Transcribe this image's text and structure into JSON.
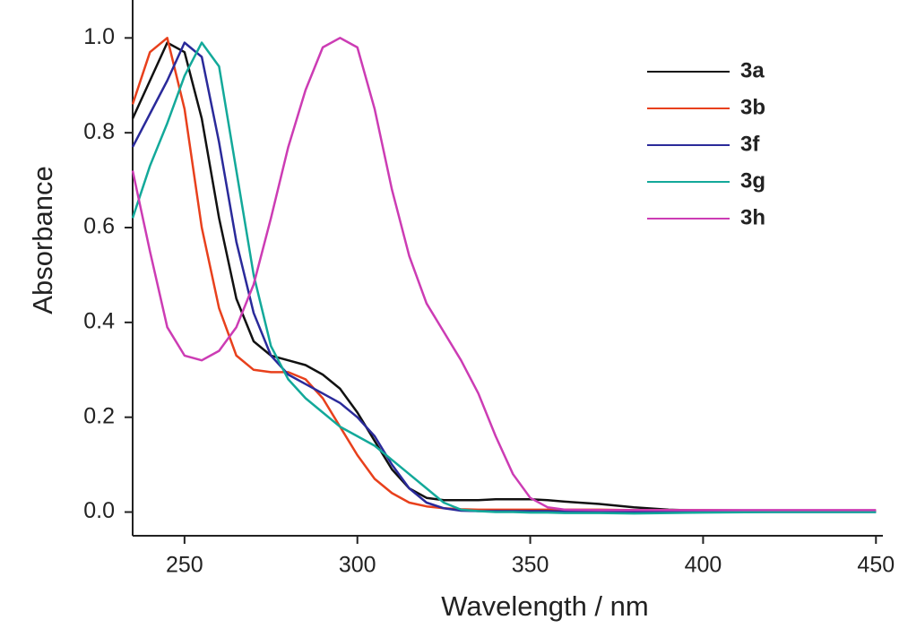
{
  "chart_data": {
    "type": "line",
    "x_label": "Wavelength / nm",
    "y_label": "Absorbance",
    "x": [
      235,
      240,
      245,
      250,
      255,
      260,
      265,
      270,
      275,
      280,
      285,
      290,
      295,
      300,
      305,
      310,
      315,
      320,
      325,
      330,
      335,
      340,
      345,
      350,
      355,
      360,
      370,
      380,
      390,
      400,
      420,
      450
    ],
    "series": [
      {
        "name": "3a",
        "color": "#111111",
        "values": [
          0.83,
          0.91,
          0.99,
          0.97,
          0.83,
          0.62,
          0.45,
          0.36,
          0.33,
          0.32,
          0.31,
          0.29,
          0.26,
          0.21,
          0.15,
          0.09,
          0.05,
          0.03,
          0.025,
          0.025,
          0.025,
          0.027,
          0.027,
          0.027,
          0.025,
          0.022,
          0.017,
          0.01,
          0.005,
          0.003,
          0.002,
          0.002
        ]
      },
      {
        "name": "3b",
        "color": "#e8401c",
        "values": [
          0.86,
          0.97,
          1.0,
          0.85,
          0.6,
          0.43,
          0.33,
          0.3,
          0.295,
          0.295,
          0.28,
          0.24,
          0.18,
          0.12,
          0.07,
          0.04,
          0.02,
          0.012,
          0.008,
          0.006,
          0.005,
          0.005,
          0.005,
          0.005,
          0.005,
          0.005,
          0.005,
          0.004,
          0.004,
          0.004,
          0.003,
          0.003
        ]
      },
      {
        "name": "3f",
        "color": "#2a2a9a",
        "values": [
          0.77,
          0.84,
          0.91,
          0.99,
          0.96,
          0.78,
          0.57,
          0.42,
          0.33,
          0.29,
          0.27,
          0.25,
          0.23,
          0.2,
          0.16,
          0.1,
          0.05,
          0.02,
          0.008,
          0.003,
          0.002,
          0.002,
          0.002,
          0.002,
          0.002,
          0.001,
          0.001,
          0.0,
          0.0,
          0.0,
          0.0,
          0.0
        ]
      },
      {
        "name": "3g",
        "color": "#13a99a",
        "values": [
          0.62,
          0.73,
          0.82,
          0.92,
          0.99,
          0.94,
          0.72,
          0.5,
          0.35,
          0.28,
          0.24,
          0.21,
          0.18,
          0.16,
          0.14,
          0.11,
          0.08,
          0.05,
          0.02,
          0.005,
          0.002,
          0.0,
          0.0,
          -0.001,
          -0.001,
          -0.002,
          -0.002,
          -0.003,
          -0.002,
          -0.001,
          0.0,
          0.0
        ]
      },
      {
        "name": "3h",
        "color": "#cc3cb4",
        "values": [
          0.72,
          0.55,
          0.39,
          0.33,
          0.32,
          0.34,
          0.39,
          0.48,
          0.62,
          0.77,
          0.89,
          0.98,
          1.0,
          0.98,
          0.85,
          0.68,
          0.54,
          0.44,
          0.38,
          0.32,
          0.25,
          0.16,
          0.08,
          0.03,
          0.01,
          0.005,
          0.004,
          0.004,
          0.004,
          0.004,
          0.004,
          0.004
        ]
      }
    ],
    "xlim": [
      235,
      452
    ],
    "ylim": [
      -0.05,
      1.08
    ],
    "xticks": [
      250,
      300,
      350,
      400,
      450
    ],
    "yticks": [
      {
        "value": 0,
        "label": "0.0"
      },
      0.2,
      0.4,
      0.6,
      0.8,
      {
        "value": 1,
        "label": "1.0"
      }
    ],
    "legend": "upper right",
    "grid": false
  }
}
